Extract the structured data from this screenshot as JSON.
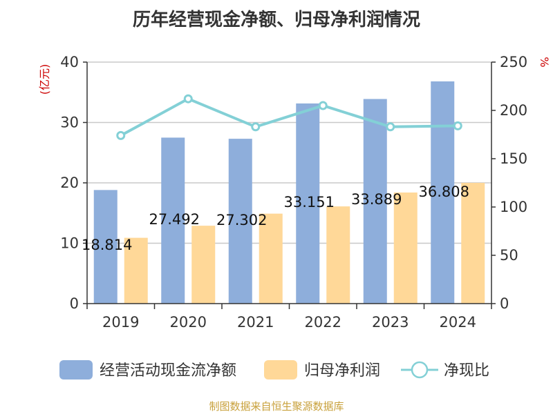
{
  "title": "历年经营现金净额、归母净利润情况",
  "source": "制图数据来自恒生聚源数据库",
  "colors": {
    "cash_bar": "#8eaedb",
    "profit_bar": "#ffd898",
    "ratio_line": "#83d0d6",
    "axis": "#333333",
    "grid": "#c8c8c8",
    "unit": "#cc0000"
  },
  "chart_data": {
    "type": "bar",
    "categories": [
      "2019",
      "2020",
      "2021",
      "2022",
      "2023",
      "2024"
    ],
    "series": [
      {
        "name": "经营活动现金流净额",
        "type": "bar",
        "axis": "left",
        "values": [
          18.814,
          27.492,
          27.302,
          33.151,
          33.889,
          36.808
        ],
        "data_labels": [
          "18.814",
          "27.492",
          "27.302",
          "33.151",
          "33.889",
          "36.808"
        ]
      },
      {
        "name": "归母净利润",
        "type": "bar",
        "axis": "left",
        "values": [
          10.9,
          12.9,
          14.9,
          16.1,
          18.4,
          20.0
        ]
      },
      {
        "name": "净现比",
        "type": "line",
        "axis": "right",
        "values": [
          174,
          212,
          183,
          205,
          183,
          184
        ]
      }
    ],
    "y_left": {
      "label": "(亿元)",
      "ylim": [
        0,
        40
      ],
      "ticks": [
        "0",
        "10",
        "20",
        "30",
        "40"
      ]
    },
    "y_right": {
      "label": "%",
      "ylim": [
        0,
        250
      ],
      "ticks": [
        "0",
        "50",
        "100",
        "150",
        "200",
        "250"
      ]
    },
    "grid": true,
    "legend": "bottom"
  }
}
